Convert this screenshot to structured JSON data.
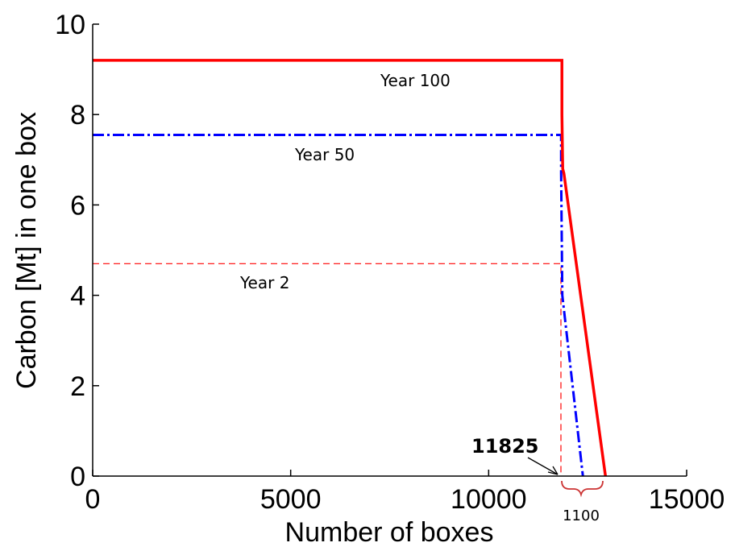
{
  "chart_data": {
    "type": "line",
    "xlabel": "Number of boxes",
    "ylabel": "Carbon [Mt] in one box",
    "xlim": [
      0,
      15000
    ],
    "ylim": [
      0,
      10
    ],
    "xticks": [
      0,
      5000,
      10000,
      15000
    ],
    "yticks": [
      0,
      2,
      4,
      6,
      8,
      10
    ],
    "grid": false,
    "series": [
      {
        "name": "Year 100",
        "color": "#ff0000",
        "style": "solid-thick",
        "x": [
          0,
          11850,
          11850,
          11870,
          11900,
          12950
        ],
        "y": [
          9.2,
          9.2,
          8.0,
          6.8,
          6.7,
          0
        ]
      },
      {
        "name": "Year 50",
        "color": "#0000ff",
        "style": "dash-dot",
        "x": [
          0,
          11830,
          11830,
          11860,
          12380
        ],
        "y": [
          7.55,
          7.55,
          6.7,
          4.0,
          0
        ]
      },
      {
        "name": "Year 2",
        "color": "#ff0000",
        "style": "dashed-thin",
        "x": [
          0,
          11825,
          11825
        ],
        "y": [
          4.7,
          4.7,
          0
        ]
      }
    ],
    "annotations": {
      "label_year100": "Year 100",
      "label_year50": "Year 50",
      "label_year2": "Year 2",
      "callout_value": "11825",
      "brace_value": "1100"
    }
  }
}
